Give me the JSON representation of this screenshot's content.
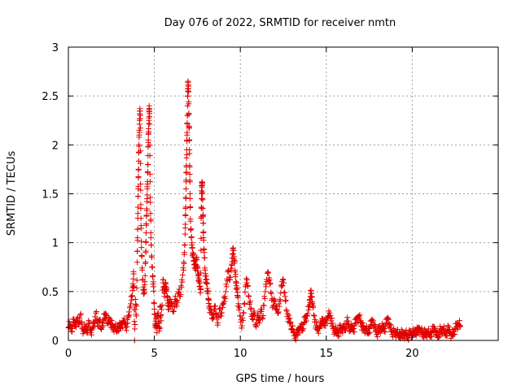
{
  "chart_data": {
    "type": "scatter",
    "title": "Day 076 of 2022, SRMTID for receiver nmtn",
    "xlabel": "GPS time / hours",
    "ylabel": "SRMTID / TECUs",
    "xlim": [
      0,
      25
    ],
    "ylim": [
      0,
      3
    ],
    "xticks": [
      0,
      5,
      10,
      15,
      20
    ],
    "yticks": [
      0,
      0.5,
      1,
      1.5,
      2,
      2.5,
      3
    ],
    "xtick_labels": [
      "0",
      "5",
      "10",
      "15",
      "20"
    ],
    "ytick_labels": [
      "0",
      "0.5",
      "1",
      "1.5",
      "2",
      "2.5",
      "3"
    ],
    "grid": true,
    "marker": "+",
    "color": "#e00000",
    "x_range_of_data": [
      0,
      22.8
    ],
    "series": [
      {
        "name": "SRMTID",
        "points": [
          [
            0.0,
            0.13
          ],
          [
            0.1,
            0.16
          ],
          [
            0.2,
            0.12
          ],
          [
            0.3,
            0.19
          ],
          [
            0.4,
            0.15
          ],
          [
            0.5,
            0.22
          ],
          [
            0.6,
            0.18
          ],
          [
            0.7,
            0.26
          ],
          [
            0.8,
            0.12
          ],
          [
            0.9,
            0.09
          ],
          [
            1.0,
            0.14
          ],
          [
            1.1,
            0.11
          ],
          [
            1.2,
            0.17
          ],
          [
            1.3,
            0.08
          ],
          [
            1.4,
            0.13
          ],
          [
            1.5,
            0.18
          ],
          [
            1.6,
            0.28
          ],
          [
            1.7,
            0.15
          ],
          [
            1.8,
            0.21
          ],
          [
            1.9,
            0.12
          ],
          [
            2.0,
            0.19
          ],
          [
            2.1,
            0.23
          ],
          [
            2.2,
            0.26
          ],
          [
            2.3,
            0.18
          ],
          [
            2.4,
            0.22
          ],
          [
            2.5,
            0.17
          ],
          [
            2.6,
            0.11
          ],
          [
            2.7,
            0.14
          ],
          [
            2.8,
            0.1
          ],
          [
            2.9,
            0.15
          ],
          [
            3.0,
            0.13
          ],
          [
            3.1,
            0.16
          ],
          [
            3.2,
            0.2
          ],
          [
            3.3,
            0.18
          ],
          [
            3.4,
            0.14
          ],
          [
            3.5,
            0.24
          ],
          [
            3.6,
            0.35
          ],
          [
            3.7,
            0.45
          ],
          [
            3.75,
            0.58
          ],
          [
            3.8,
            0.68
          ],
          [
            3.85,
            0.0
          ],
          [
            3.9,
            0.42
          ],
          [
            3.95,
            0.25
          ],
          [
            4.0,
            0.8
          ],
          [
            4.02,
            1.05
          ],
          [
            4.04,
            1.3
          ],
          [
            4.06,
            1.55
          ],
          [
            4.08,
            1.75
          ],
          [
            4.1,
            1.92
          ],
          [
            4.12,
            2.1
          ],
          [
            4.14,
            2.25
          ],
          [
            4.16,
            2.37
          ],
          [
            4.18,
            2.3
          ],
          [
            4.2,
            1.6
          ],
          [
            4.22,
            1.25
          ],
          [
            4.25,
            0.95
          ],
          [
            4.3,
            0.72
          ],
          [
            4.35,
            0.52
          ],
          [
            4.4,
            0.48
          ],
          [
            4.45,
            0.6
          ],
          [
            4.5,
            0.9
          ],
          [
            4.52,
            1.1
          ],
          [
            4.55,
            1.28
          ],
          [
            4.58,
            1.45
          ],
          [
            4.6,
            1.6
          ],
          [
            4.62,
            1.8
          ],
          [
            4.64,
            1.98
          ],
          [
            4.66,
            2.12
          ],
          [
            4.68,
            2.25
          ],
          [
            4.7,
            2.4
          ],
          [
            4.72,
            2.32
          ],
          [
            4.75,
            1.7
          ],
          [
            4.78,
            1.3
          ],
          [
            4.8,
            1.05
          ],
          [
            4.85,
            0.85
          ],
          [
            4.9,
            0.65
          ],
          [
            4.95,
            0.55
          ],
          [
            5.0,
            0.32
          ],
          [
            5.05,
            0.15
          ],
          [
            5.1,
            0.22
          ],
          [
            5.15,
            0.08
          ],
          [
            5.2,
            0.28
          ],
          [
            5.25,
            0.18
          ],
          [
            5.3,
            0.12
          ],
          [
            5.35,
            0.35
          ],
          [
            5.4,
            0.2
          ],
          [
            5.5,
            0.62
          ],
          [
            5.55,
            0.55
          ],
          [
            5.6,
            0.48
          ],
          [
            5.65,
            0.58
          ],
          [
            5.7,
            0.52
          ],
          [
            5.75,
            0.45
          ],
          [
            5.8,
            0.38
          ],
          [
            5.85,
            0.32
          ],
          [
            5.9,
            0.42
          ],
          [
            6.0,
            0.38
          ],
          [
            6.1,
            0.3
          ],
          [
            6.2,
            0.42
          ],
          [
            6.3,
            0.35
          ],
          [
            6.4,
            0.5
          ],
          [
            6.5,
            0.45
          ],
          [
            6.6,
            0.62
          ],
          [
            6.7,
            0.72
          ],
          [
            6.75,
            0.9
          ],
          [
            6.8,
            1.15
          ],
          [
            6.82,
            1.35
          ],
          [
            6.84,
            1.55
          ],
          [
            6.86,
            1.72
          ],
          [
            6.88,
            1.9
          ],
          [
            6.9,
            2.1
          ],
          [
            6.92,
            2.3
          ],
          [
            6.94,
            2.5
          ],
          [
            6.96,
            2.65
          ],
          [
            6.98,
            2.6
          ],
          [
            7.0,
            2.42
          ],
          [
            7.02,
            2.18
          ],
          [
            7.04,
            1.95
          ],
          [
            7.06,
            1.7
          ],
          [
            7.08,
            1.45
          ],
          [
            7.1,
            1.22
          ],
          [
            7.15,
            1.05
          ],
          [
            7.2,
            0.95
          ],
          [
            7.25,
            0.88
          ],
          [
            7.3,
            0.82
          ],
          [
            7.35,
            0.78
          ],
          [
            7.4,
            0.72
          ],
          [
            7.45,
            0.85
          ],
          [
            7.5,
            0.75
          ],
          [
            7.55,
            0.68
          ],
          [
            7.6,
            0.6
          ],
          [
            7.65,
            0.55
          ],
          [
            7.7,
            0.52
          ],
          [
            7.72,
            1.25
          ],
          [
            7.74,
            1.45
          ],
          [
            7.76,
            1.58
          ],
          [
            7.78,
            1.62
          ],
          [
            7.8,
            1.5
          ],
          [
            7.82,
            1.35
          ],
          [
            7.84,
            1.2
          ],
          [
            7.86,
            1.05
          ],
          [
            7.9,
            0.9
          ],
          [
            7.95,
            0.72
          ],
          [
            8.0,
            0.62
          ],
          [
            8.05,
            0.58
          ],
          [
            8.1,
            0.5
          ],
          [
            8.15,
            0.42
          ],
          [
            8.2,
            0.35
          ],
          [
            8.3,
            0.28
          ],
          [
            8.4,
            0.22
          ],
          [
            8.5,
            0.35
          ],
          [
            8.6,
            0.28
          ],
          [
            8.7,
            0.18
          ],
          [
            8.8,
            0.32
          ],
          [
            8.9,
            0.25
          ],
          [
            9.0,
            0.38
          ],
          [
            9.1,
            0.45
          ],
          [
            9.2,
            0.55
          ],
          [
            9.3,
            0.72
          ],
          [
            9.4,
            0.62
          ],
          [
            9.5,
            0.78
          ],
          [
            9.55,
            0.88
          ],
          [
            9.6,
            0.92
          ],
          [
            9.65,
            0.82
          ],
          [
            9.7,
            0.7
          ],
          [
            9.75,
            0.6
          ],
          [
            9.8,
            0.52
          ],
          [
            9.85,
            0.45
          ],
          [
            9.9,
            0.35
          ],
          [
            10.0,
            0.25
          ],
          [
            10.1,
            0.15
          ],
          [
            10.2,
            0.28
          ],
          [
            10.3,
            0.55
          ],
          [
            10.4,
            0.62
          ],
          [
            10.5,
            0.45
          ],
          [
            10.6,
            0.32
          ],
          [
            10.7,
            0.22
          ],
          [
            10.8,
            0.3
          ],
          [
            10.9,
            0.15
          ],
          [
            11.0,
            0.25
          ],
          [
            11.1,
            0.18
          ],
          [
            11.2,
            0.32
          ],
          [
            11.3,
            0.22
          ],
          [
            11.4,
            0.45
          ],
          [
            11.5,
            0.55
          ],
          [
            11.6,
            0.7
          ],
          [
            11.7,
            0.62
          ],
          [
            11.8,
            0.48
          ],
          [
            11.9,
            0.35
          ],
          [
            12.0,
            0.4
          ],
          [
            12.1,
            0.32
          ],
          [
            12.2,
            0.28
          ],
          [
            12.3,
            0.42
          ],
          [
            12.4,
            0.55
          ],
          [
            12.5,
            0.62
          ],
          [
            12.6,
            0.45
          ],
          [
            12.7,
            0.3
          ],
          [
            12.8,
            0.22
          ],
          [
            12.9,
            0.18
          ],
          [
            13.0,
            0.12
          ],
          [
            13.1,
            0.08
          ],
          [
            13.2,
            0.05
          ],
          [
            13.3,
            0.06
          ],
          [
            13.4,
            0.1
          ],
          [
            13.5,
            0.15
          ],
          [
            13.6,
            0.12
          ],
          [
            13.7,
            0.18
          ],
          [
            13.8,
            0.22
          ],
          [
            13.9,
            0.25
          ],
          [
            14.0,
            0.35
          ],
          [
            14.05,
            0.42
          ],
          [
            14.1,
            0.48
          ],
          [
            14.15,
            0.45
          ],
          [
            14.2,
            0.38
          ],
          [
            14.3,
            0.25
          ],
          [
            14.4,
            0.15
          ],
          [
            14.5,
            0.1
          ],
          [
            14.6,
            0.12
          ],
          [
            14.7,
            0.18
          ],
          [
            14.8,
            0.22
          ],
          [
            14.9,
            0.15
          ],
          [
            15.0,
            0.2
          ],
          [
            15.1,
            0.25
          ],
          [
            15.2,
            0.28
          ],
          [
            15.3,
            0.2
          ],
          [
            15.4,
            0.12
          ],
          [
            15.5,
            0.08
          ],
          [
            15.6,
            0.1
          ],
          [
            15.7,
            0.08
          ],
          [
            15.8,
            0.12
          ],
          [
            15.9,
            0.1
          ],
          [
            16.0,
            0.15
          ],
          [
            16.1,
            0.12
          ],
          [
            16.2,
            0.2
          ],
          [
            16.3,
            0.15
          ],
          [
            16.4,
            0.1
          ],
          [
            16.5,
            0.14
          ],
          [
            16.6,
            0.12
          ],
          [
            16.7,
            0.18
          ],
          [
            16.8,
            0.22
          ],
          [
            16.9,
            0.25
          ],
          [
            17.0,
            0.2
          ],
          [
            17.1,
            0.14
          ],
          [
            17.2,
            0.1
          ],
          [
            17.3,
            0.12
          ],
          [
            17.4,
            0.08
          ],
          [
            17.5,
            0.12
          ],
          [
            17.6,
            0.16
          ],
          [
            17.7,
            0.2
          ],
          [
            17.8,
            0.15
          ],
          [
            17.9,
            0.1
          ],
          [
            18.0,
            0.08
          ],
          [
            18.1,
            0.12
          ],
          [
            18.2,
            0.1
          ],
          [
            18.3,
            0.15
          ],
          [
            18.4,
            0.12
          ],
          [
            18.5,
            0.18
          ],
          [
            18.6,
            0.22
          ],
          [
            18.7,
            0.15
          ],
          [
            18.8,
            0.1
          ],
          [
            18.9,
            0.08
          ],
          [
            19.0,
            0.06
          ],
          [
            19.1,
            0.08
          ],
          [
            19.2,
            0.05
          ],
          [
            19.3,
            0.07
          ],
          [
            19.4,
            0.06
          ],
          [
            19.5,
            0.05
          ],
          [
            19.6,
            0.08
          ],
          [
            19.7,
            0.06
          ],
          [
            19.8,
            0.05
          ],
          [
            19.9,
            0.07
          ],
          [
            20.0,
            0.06
          ],
          [
            20.1,
            0.08
          ],
          [
            20.2,
            0.1
          ],
          [
            20.3,
            0.08
          ],
          [
            20.4,
            0.12
          ],
          [
            20.5,
            0.1
          ],
          [
            20.6,
            0.08
          ],
          [
            20.7,
            0.07
          ],
          [
            20.8,
            0.06
          ],
          [
            20.9,
            0.08
          ],
          [
            21.0,
            0.06
          ],
          [
            21.1,
            0.08
          ],
          [
            21.2,
            0.1
          ],
          [
            21.3,
            0.12
          ],
          [
            21.4,
            0.08
          ],
          [
            21.5,
            0.05
          ],
          [
            21.6,
            0.1
          ],
          [
            21.7,
            0.08
          ],
          [
            21.8,
            0.12
          ],
          [
            21.9,
            0.07
          ],
          [
            22.0,
            0.09
          ],
          [
            22.1,
            0.11
          ],
          [
            22.2,
            0.08
          ],
          [
            22.3,
            0.06
          ],
          [
            22.4,
            0.09
          ],
          [
            22.5,
            0.12
          ],
          [
            22.6,
            0.14
          ],
          [
            22.7,
            0.16
          ],
          [
            22.8,
            0.15
          ]
        ]
      }
    ]
  }
}
